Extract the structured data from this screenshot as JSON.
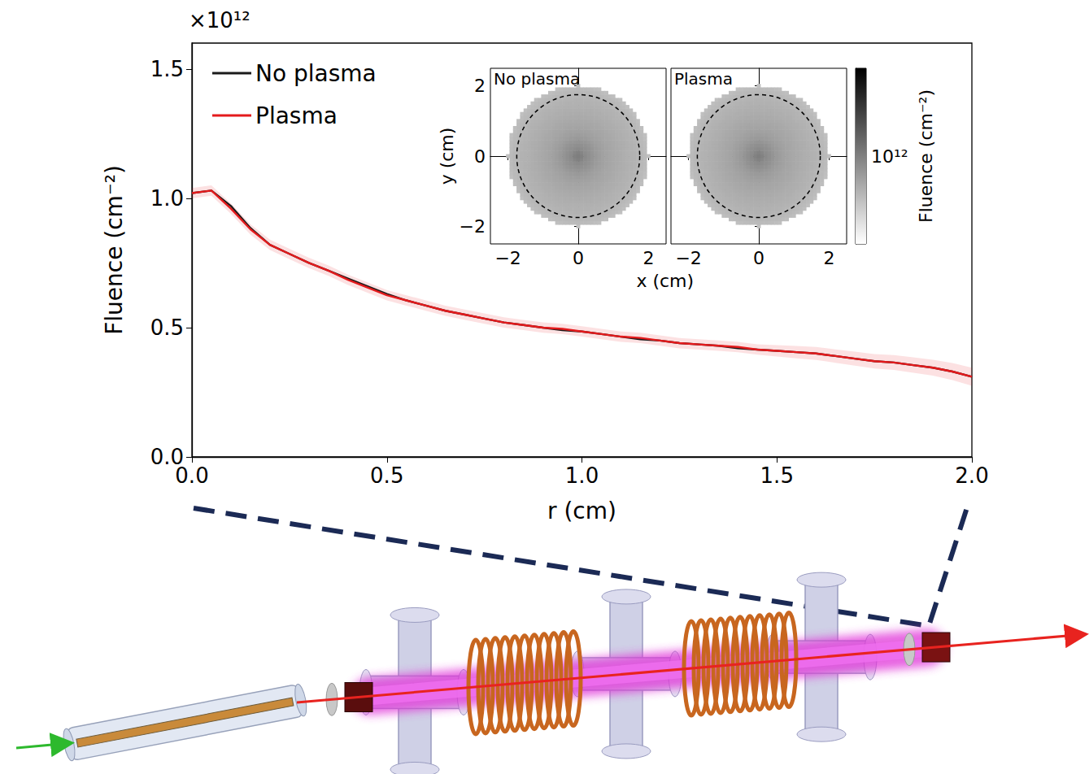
{
  "chart_data": {
    "type": "line",
    "x_label": "r (cm)",
    "y_label": "Fluence (cm⁻²)",
    "y_scale_label": "×10¹²",
    "x": [
      0,
      0.05,
      0.1,
      0.15,
      0.2,
      0.25,
      0.3,
      0.35,
      0.4,
      0.45,
      0.5,
      0.55,
      0.6,
      0.65,
      0.7,
      0.75,
      0.8,
      0.85,
      0.9,
      0.95,
      1.0,
      1.05,
      1.1,
      1.15,
      1.2,
      1.25,
      1.3,
      1.35,
      1.4,
      1.45,
      1.5,
      1.55,
      1.6,
      1.65,
      1.7,
      1.75,
      1.8,
      1.85,
      1.9,
      1.95,
      2.0
    ],
    "xlim": [
      0,
      2
    ],
    "xticks": [
      {
        "value": 0,
        "label": "0.0"
      },
      0.5,
      {
        "value": 1,
        "label": "1.0"
      },
      1.5,
      {
        "value": 2,
        "label": "2.0"
      }
    ],
    "ylim": [
      0,
      1.6
    ],
    "yticks": [
      {
        "value": 0,
        "label": "0.0"
      },
      0.5,
      {
        "value": 1,
        "label": "1.0"
      },
      1.5
    ],
    "grid": false,
    "legend": "upper left",
    "series": [
      {
        "name": "No plasma",
        "color": "#1a1a1a",
        "values": [
          1.02,
          1.03,
          0.97,
          0.885,
          0.82,
          0.785,
          0.75,
          0.72,
          0.69,
          0.66,
          0.63,
          0.605,
          0.585,
          0.565,
          0.55,
          0.535,
          0.52,
          0.51,
          0.5,
          0.49,
          0.485,
          0.475,
          0.465,
          0.455,
          0.45,
          0.44,
          0.435,
          0.43,
          0.42,
          0.415,
          0.41,
          0.405,
          0.4,
          0.39,
          0.38,
          0.37,
          0.365,
          0.355,
          0.345,
          0.33,
          0.31
        ]
      },
      {
        "name": "Plasma",
        "color": "#e41a1c",
        "values": [
          1.02,
          1.03,
          0.96,
          0.88,
          0.82,
          0.785,
          0.75,
          0.72,
          0.685,
          0.655,
          0.625,
          0.605,
          0.585,
          0.565,
          0.55,
          0.535,
          0.52,
          0.51,
          0.5,
          0.495,
          0.485,
          0.475,
          0.465,
          0.46,
          0.45,
          0.44,
          0.435,
          0.43,
          0.425,
          0.415,
          0.41,
          0.405,
          0.4,
          0.39,
          0.38,
          0.37,
          0.365,
          0.355,
          0.345,
          0.33,
          0.31
        ],
        "errors": [
          0.02,
          0.02,
          0.02,
          0.02,
          0.02,
          0.02,
          0.02,
          0.02,
          0.02,
          0.02,
          0.02,
          0.02,
          0.02,
          0.02,
          0.02,
          0.02,
          0.02,
          0.02,
          0.02,
          0.02,
          0.02,
          0.02,
          0.02,
          0.02,
          0.02,
          0.02,
          0.02,
          0.02,
          0.02,
          0.02,
          0.022,
          0.024,
          0.025,
          0.026,
          0.027,
          0.028,
          0.029,
          0.03,
          0.031,
          0.033,
          0.035
        ]
      }
    ],
    "inset": {
      "type": "heatmap",
      "x_label": "x (cm)",
      "y_label": "y (cm)",
      "xlim": [
        -2.5,
        2.5
      ],
      "ylim": [
        -2.5,
        2.5
      ],
      "xticks": [
        {
          "value": -2,
          "label": "−2"
        },
        0,
        2
      ],
      "yticks": [
        {
          "value": -2,
          "label": "−2"
        },
        0,
        2
      ],
      "circle_radius": 1.75,
      "panels": [
        {
          "title": "No plasma",
          "series": "No plasma"
        },
        {
          "title": "Plasma",
          "series": "Plasma"
        }
      ],
      "colorbar": {
        "label": "Fluence (cm⁻²)",
        "range": [
          0.1,
          10
        ],
        "log": true,
        "ticks": [
          {
            "value": 1,
            "label": "10¹²"
          }
        ]
      }
    }
  }
}
